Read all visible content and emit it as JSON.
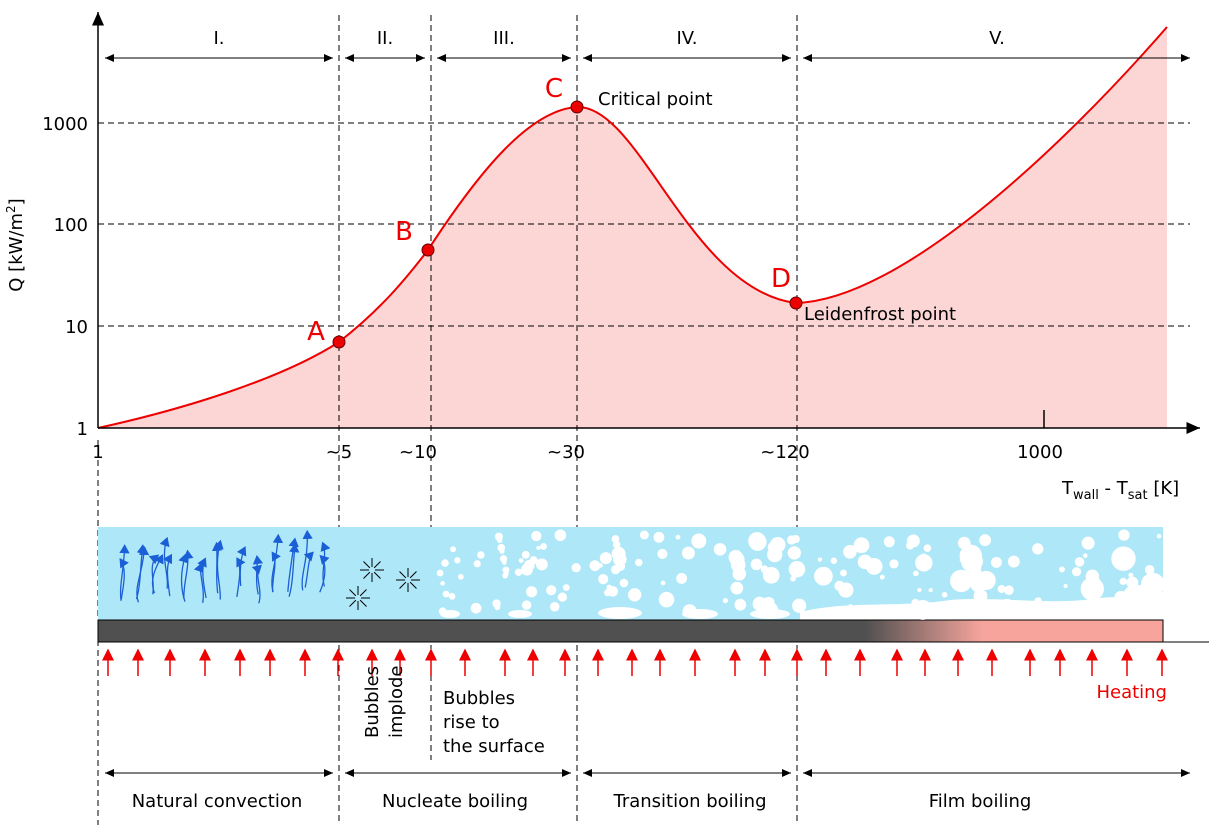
{
  "axes": {
    "y_label": {
      "text": "Q [kW/m",
      "sup": "2",
      "end": "]"
    },
    "x_label": {
      "t1": "T",
      "s1": "wall",
      "t2": " - T",
      "s2": "sat",
      "end": " [K]"
    },
    "y_ticks": [
      "1",
      "10",
      "100",
      "1000"
    ],
    "x_ticks": [
      "1",
      "~5",
      "~10",
      "~30",
      "~120",
      "1000"
    ]
  },
  "regions": [
    "I.",
    "II.",
    "III.",
    "IV.",
    "V."
  ],
  "points": [
    {
      "label": "A"
    },
    {
      "label": "B"
    },
    {
      "label": "C",
      "note": "Critical point"
    },
    {
      "label": "D",
      "note": "Leidenfrost point"
    }
  ],
  "annotations": {
    "implode": [
      "Bubbles",
      "implode"
    ],
    "rise": [
      "Bubbles",
      "rise to",
      "the surface"
    ],
    "heating": "Heating"
  },
  "regimes": [
    "Natural convection",
    "Nucleate boiling",
    "Transition boiling",
    "Film boiling"
  ]
}
